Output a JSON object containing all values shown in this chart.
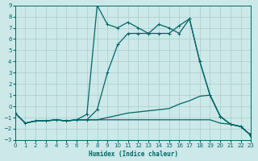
{
  "xlabel": "Humidex (Indice chaleur)",
  "xlim": [
    0,
    23
  ],
  "ylim": [
    -3,
    9
  ],
  "xticks": [
    0,
    1,
    2,
    3,
    4,
    5,
    6,
    7,
    8,
    9,
    10,
    11,
    12,
    13,
    14,
    15,
    16,
    17,
    18,
    19,
    20,
    21,
    22,
    23
  ],
  "yticks": [
    -3,
    -2,
    -1,
    0,
    1,
    2,
    3,
    4,
    5,
    6,
    7,
    8,
    9
  ],
  "bg_color": "#cce8e8",
  "line_color": "#006666",
  "grid_color": "#aacccc",
  "curve1_x": [
    0,
    1,
    2,
    3,
    4,
    5,
    6,
    7,
    8,
    9,
    10,
    11,
    12,
    13,
    14,
    15,
    16,
    17,
    18,
    19,
    20,
    21,
    22,
    23
  ],
  "curve1_y": [
    -0.6,
    -1.5,
    -1.3,
    -1.3,
    -1.2,
    -1.3,
    -1.2,
    -0.7,
    9.0,
    7.3,
    7.0,
    7.5,
    7.0,
    6.5,
    7.3,
    7.0,
    6.5,
    7.8,
    4.0,
    1.0,
    -0.9,
    -1.6,
    -1.8,
    -2.6
  ],
  "curve2_x": [
    0,
    1,
    2,
    3,
    4,
    5,
    6,
    7,
    8,
    9,
    10,
    11,
    12,
    13,
    14,
    15,
    16,
    17,
    18,
    19,
    20,
    21,
    22,
    23
  ],
  "curve2_y": [
    -0.6,
    -1.5,
    -1.3,
    -1.3,
    -1.2,
    -1.3,
    -1.2,
    -1.2,
    -0.3,
    3.0,
    5.5,
    6.5,
    6.5,
    6.5,
    6.5,
    6.5,
    7.2,
    7.8,
    4.0,
    1.0,
    -0.9,
    -1.6,
    -1.8,
    -2.6
  ],
  "curve3_x": [
    0,
    1,
    2,
    3,
    4,
    5,
    6,
    7,
    8,
    9,
    10,
    11,
    12,
    13,
    14,
    15,
    16,
    17,
    18,
    19,
    20,
    21,
    22,
    23
  ],
  "curve3_y": [
    -0.6,
    -1.5,
    -1.3,
    -1.3,
    -1.2,
    -1.3,
    -1.2,
    -1.2,
    -1.2,
    -1.0,
    -0.8,
    -0.6,
    -0.5,
    -0.4,
    -0.3,
    -0.2,
    0.2,
    0.5,
    0.9,
    1.0,
    -0.9,
    -1.6,
    -1.8,
    -2.6
  ],
  "curve4_x": [
    0,
    1,
    2,
    3,
    4,
    5,
    6,
    7,
    8,
    9,
    10,
    11,
    12,
    13,
    14,
    15,
    16,
    17,
    18,
    19,
    20,
    21,
    22,
    23
  ],
  "curve4_y": [
    -0.6,
    -1.5,
    -1.3,
    -1.3,
    -1.2,
    -1.3,
    -1.2,
    -1.2,
    -1.2,
    -1.2,
    -1.2,
    -1.2,
    -1.2,
    -1.2,
    -1.2,
    -1.2,
    -1.2,
    -1.2,
    -1.2,
    -1.2,
    -1.5,
    -1.6,
    -1.8,
    -2.6
  ],
  "curve1_markers": [
    0,
    1,
    2,
    3,
    4,
    5,
    6,
    7,
    8,
    9,
    10,
    11,
    12,
    13,
    14,
    15,
    16,
    17,
    18,
    19,
    20,
    21,
    22,
    23
  ],
  "curve2_markers": [
    7,
    8,
    9,
    10,
    11,
    12,
    13,
    14,
    15,
    16,
    17,
    18,
    19,
    20,
    21,
    22,
    23
  ],
  "curve3_markers": [
    19,
    20
  ],
  "curve4_marker_end": true
}
